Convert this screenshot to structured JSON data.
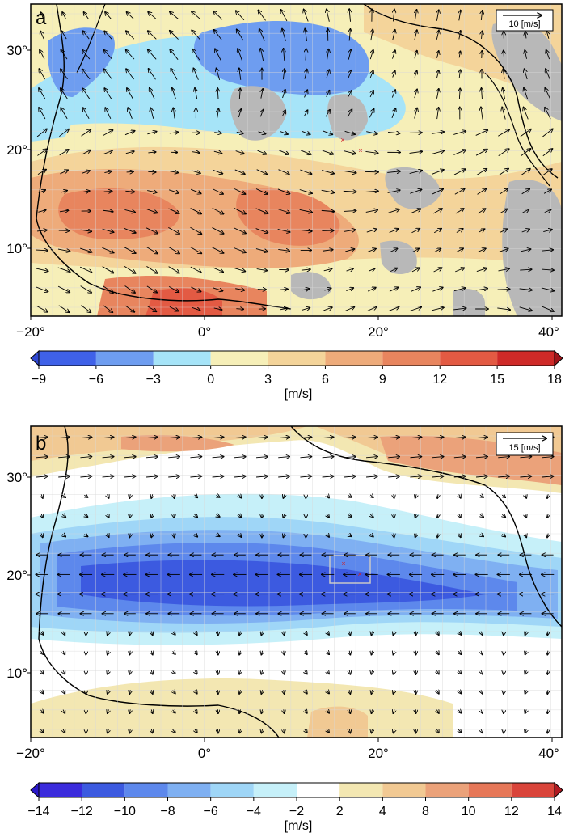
{
  "panels": [
    {
      "id": "a",
      "letter": "a",
      "ref_arrow_label": "10 [m/s]",
      "lon_ticks": [
        "−20°",
        "0°",
        "20°",
        "40°"
      ],
      "lat_ticks": [
        "30°",
        "20°",
        "10°"
      ],
      "colorbar": {
        "unit": "[m/s]",
        "tick_labels": [
          "−9",
          "−6",
          "−3",
          "0",
          "3",
          "6",
          "9",
          "12",
          "15",
          "18"
        ],
        "colors": [
          "#3f61e8",
          "#6e9df0",
          "#a6e4f8",
          "#f6efb8",
          "#f4d49a",
          "#eeab7a",
          "#e8855e",
          "#e35a43",
          "#cf2a28"
        ],
        "under_color": "#2f47d0",
        "over_color": "#a0141a"
      }
    },
    {
      "id": "b",
      "letter": "b",
      "ref_arrow_label": "15 [m/s]",
      "lon_ticks": [
        "−20°",
        "0°",
        "20°",
        "40°"
      ],
      "lat_ticks": [
        "30°",
        "20°",
        "10°"
      ],
      "colorbar": {
        "unit": "[m/s]",
        "tick_labels": [
          "−14",
          "−12",
          "−10",
          "−8",
          "−6",
          "−4",
          "−2",
          "2",
          "4",
          "8",
          "10",
          "12",
          "14"
        ],
        "colors": [
          "#3b2bdc",
          "#3c5ae0",
          "#5d88ec",
          "#7fb0f2",
          "#9fd6f7",
          "#c6f0f9",
          "#ffffff",
          "#f3e7b2",
          "#f1c993",
          "#eba27a",
          "#e67758",
          "#d9443a"
        ],
        "under_color": "#2a18c8",
        "over_color": "#b01a22"
      }
    }
  ]
}
